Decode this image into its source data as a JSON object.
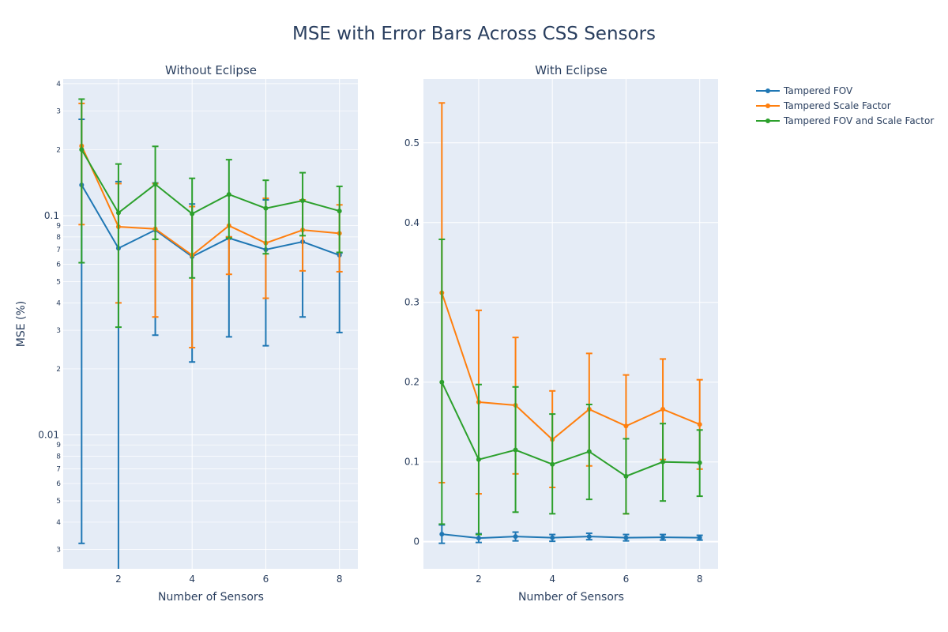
{
  "chart_data": {
    "title": "MSE with Error Bars Across CSS Sensors",
    "ylabel": "MSE (%)",
    "legend_position": "top-right",
    "colors": {
      "plot_bg": "#e5ecf6",
      "grid": "#ffffff",
      "text": "#2a3f5f",
      "series": [
        "#1f77b4",
        "#ff7f0e",
        "#2ca02c"
      ]
    },
    "series_names": [
      "Tampered FOV",
      "Tampered Scale Factor",
      "Tampered FOV and Scale Factor"
    ],
    "x": [
      1,
      2,
      3,
      4,
      5,
      6,
      7,
      8
    ],
    "panels": [
      {
        "title": "Without Eclipse",
        "xlabel": "Number of Sensors",
        "yscale": "log",
        "xlim": [
          0.5,
          8.5
        ],
        "ylim": [
          0.00245,
          0.0042
        ],
        "x_ticks": [
          2,
          4,
          6,
          8
        ],
        "y_major_ticks": [
          {
            "value": 0.01,
            "label": "0.01"
          },
          {
            "value": 0.1,
            "label": "0.1"
          }
        ],
        "y_minor_ticks": [
          {
            "value": 0.003,
            "label": "3"
          },
          {
            "value": 0.004,
            "label": "4"
          },
          {
            "value": 0.005,
            "label": "5"
          },
          {
            "value": 0.006,
            "label": "6"
          },
          {
            "value": 0.007,
            "label": "7"
          },
          {
            "value": 0.008,
            "label": "8"
          },
          {
            "value": 0.009,
            "label": "9"
          },
          {
            "value": 0.02,
            "label": "2"
          },
          {
            "value": 0.03,
            "label": "3"
          },
          {
            "value": 0.04,
            "label": "4"
          },
          {
            "value": 0.05,
            "label": "5"
          },
          {
            "value": 0.06,
            "label": "6"
          },
          {
            "value": 0.07,
            "label": "7"
          },
          {
            "value": 0.08,
            "label": "8"
          },
          {
            "value": 0.09,
            "label": "9"
          },
          {
            "value": 0.2,
            "label": "2"
          },
          {
            "value": 0.3,
            "label": "3"
          },
          {
            "value": 0.4,
            "label": "4"
          }
        ],
        "series": [
          {
            "name": "Tampered FOV",
            "values": [
              0.138,
              0.071,
              0.086,
              0.065,
              0.079,
              0.07,
              0.076,
              0.066
            ],
            "err_low": [
              0.0032,
              0.002,
              0.0285,
              0.0215,
              0.028,
              0.0255,
              0.0345,
              0.0293
            ],
            "err_high": [
              0.275,
              0.143,
              0.141,
              0.113,
              0.08,
              0.118,
              0.118,
              0.0675
            ]
          },
          {
            "name": "Tampered Scale Factor",
            "values": [
              0.208,
              0.089,
              0.087,
              0.066,
              0.09,
              0.075,
              0.086,
              0.083
            ],
            "err_low": [
              0.091,
              0.04,
              0.0345,
              0.025,
              0.054,
              0.042,
              0.056,
              0.0555
            ],
            "err_high": [
              0.325,
              0.14,
              0.14,
              0.11,
              0.08,
              0.12,
              0.118,
              0.112
            ]
          },
          {
            "name": "Tampered FOV and Scale Factor",
            "values": [
              0.2,
              0.103,
              0.139,
              0.102,
              0.125,
              0.108,
              0.117,
              0.105
            ],
            "err_low": [
              0.061,
              0.031,
              0.078,
              0.052,
              0.079,
              0.067,
              0.081,
              0.068
            ],
            "err_high": [
              0.34,
              0.172,
              0.207,
              0.148,
              0.18,
              0.145,
              0.157,
              0.136
            ]
          }
        ]
      },
      {
        "title": "With Eclipse",
        "xlabel": "Number of Sensors",
        "yscale": "linear",
        "xlim": [
          0.5,
          8.5
        ],
        "ylim": [
          -0.034,
          0.58
        ],
        "x_ticks": [
          2,
          4,
          6,
          8
        ],
        "y_major_ticks": [
          {
            "value": 0,
            "label": "0"
          },
          {
            "value": 0.1,
            "label": "0.1"
          },
          {
            "value": 0.2,
            "label": "0.2"
          },
          {
            "value": 0.3,
            "label": "0.3"
          },
          {
            "value": 0.4,
            "label": "0.4"
          },
          {
            "value": 0.5,
            "label": "0.5"
          }
        ],
        "y_minor_ticks": [],
        "series": [
          {
            "name": "Tampered FOV",
            "values": [
              0.0095,
              0.0045,
              0.0065,
              0.005,
              0.0065,
              0.005,
              0.0055,
              0.005
            ],
            "err_low": [
              -0.002,
              -0.001,
              0.001,
              0.0005,
              0.0025,
              0.001,
              0.002,
              0.002
            ],
            "err_high": [
              0.021,
              0.01,
              0.012,
              0.009,
              0.0105,
              0.009,
              0.009,
              0.008
            ]
          },
          {
            "name": "Tampered Scale Factor",
            "values": [
              0.312,
              0.175,
              0.171,
              0.128,
              0.166,
              0.145,
              0.166,
              0.147
            ],
            "err_low": [
              0.074,
              0.06,
              0.085,
              0.068,
              0.095,
              0.035,
              0.103,
              0.091
            ],
            "err_high": [
              0.55,
              0.29,
              0.256,
              0.189,
              0.236,
              0.209,
              0.229,
              0.203
            ]
          },
          {
            "name": "Tampered FOV and Scale Factor",
            "values": [
              0.2,
              0.103,
              0.115,
              0.097,
              0.113,
              0.082,
              0.1,
              0.099
            ],
            "err_low": [
              0.022,
              0.009,
              0.037,
              0.035,
              0.053,
              0.035,
              0.051,
              0.057
            ],
            "err_high": [
              0.379,
              0.197,
              0.194,
              0.16,
              0.172,
              0.129,
              0.148,
              0.14
            ]
          }
        ]
      }
    ]
  }
}
